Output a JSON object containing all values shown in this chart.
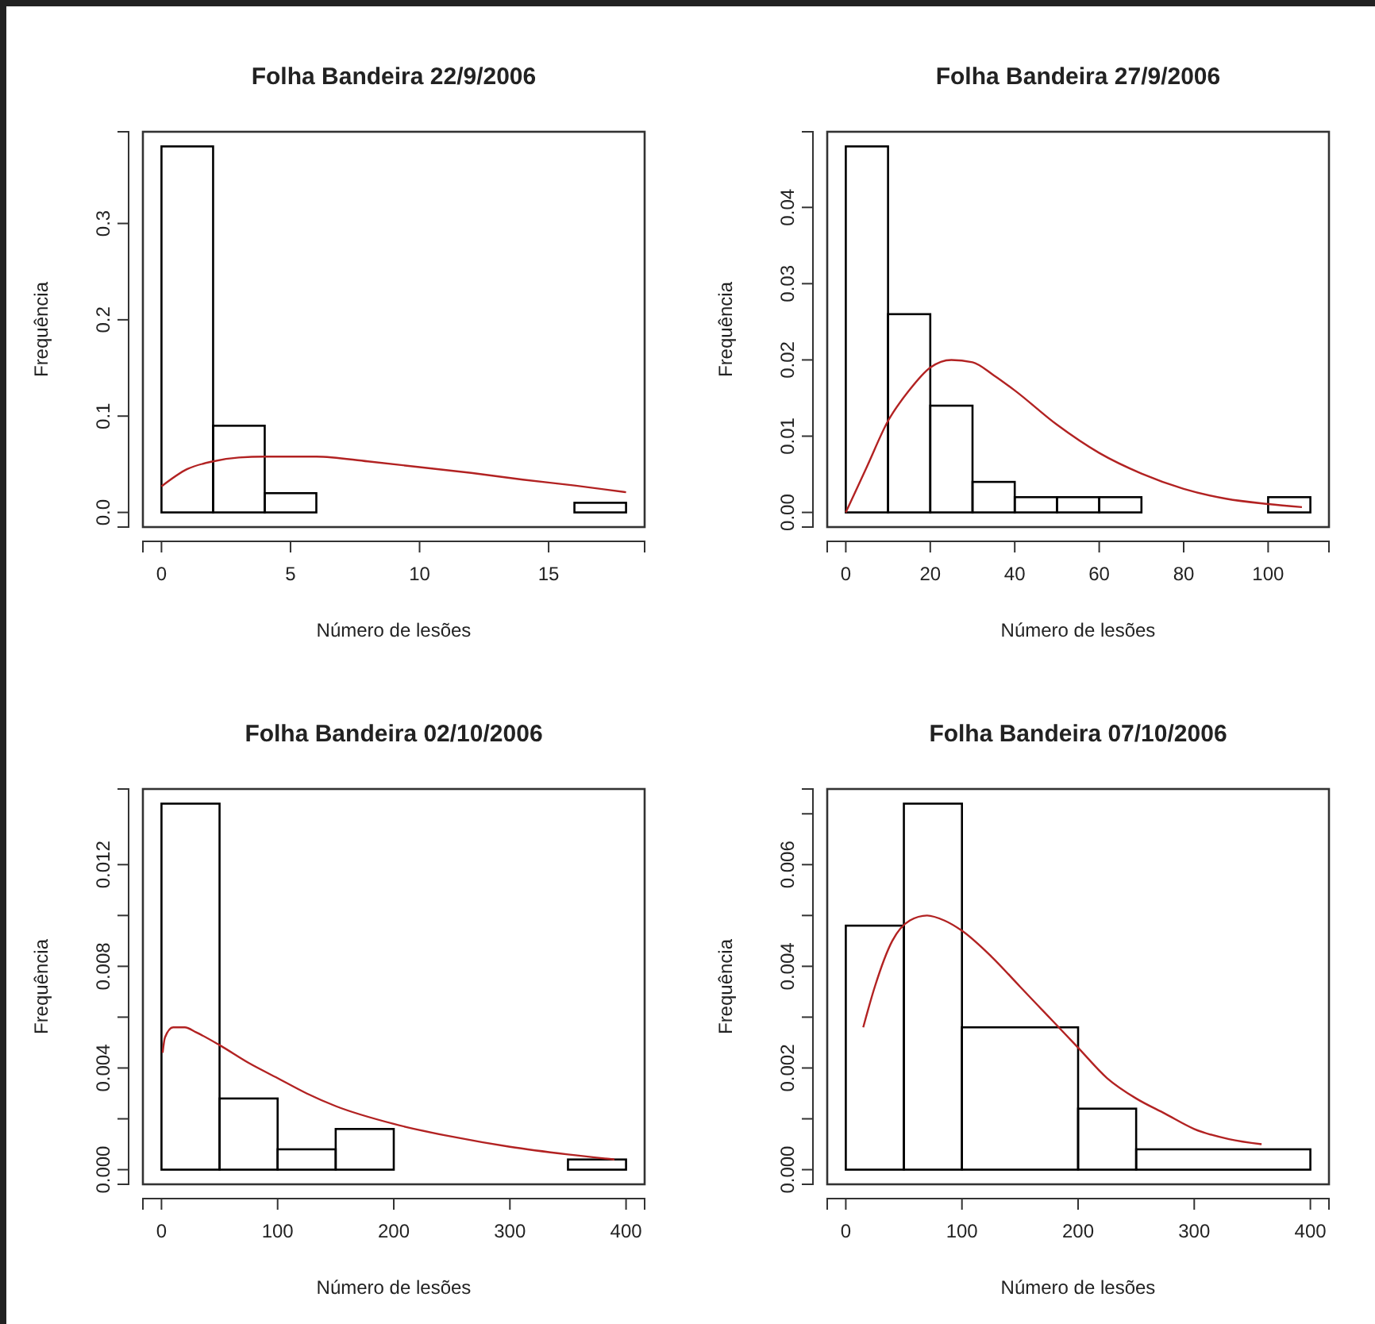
{
  "chart_data": [
    {
      "type": "histogram",
      "title": "Folha Bandeira 22/9/2006",
      "xlabel": "Número de lesões",
      "ylabel": "Frequência",
      "color": "#000000",
      "bins": [
        0,
        2,
        4,
        6,
        8,
        10,
        12,
        14,
        16,
        18
      ],
      "values": [
        0.38,
        0.09,
        0.02,
        0,
        0,
        0,
        0,
        0,
        0.01
      ],
      "xlim": [
        -0.72,
        18.72
      ],
      "ylim": [
        -0.0152,
        0.3952
      ],
      "xticks": [
        0,
        5,
        10,
        15
      ],
      "yticks": [
        {
          "value": 0,
          "label": "0.0"
        },
        0.1,
        0.2,
        0.3
      ],
      "series": [
        {
          "type": "line",
          "color": "#b22222",
          "x": [
            0,
            1,
            2,
            3,
            4,
            6,
            8,
            10,
            12,
            14,
            16,
            18
          ],
          "values": [
            0.027,
            0.045,
            0.053,
            0.057,
            0.058,
            0.058,
            0.053,
            0.047,
            0.041,
            0.034,
            0.028,
            0.021
          ]
        }
      ]
    },
    {
      "type": "histogram",
      "title": "Folha Bandeira 27/9/2006",
      "xlabel": "Número de lesões",
      "ylabel": "Frequência",
      "color": "#000000",
      "bins": [
        0,
        10,
        20,
        30,
        40,
        50,
        60,
        70,
        80,
        90,
        100,
        110
      ],
      "values": [
        0.048,
        0.026,
        0.014,
        0.004,
        0.002,
        0.002,
        0.002,
        0,
        0,
        0,
        0.002
      ],
      "xlim": [
        -4.4,
        114.4
      ],
      "ylim": [
        -0.00192,
        0.04992
      ],
      "xticks": [
        0,
        20,
        40,
        60,
        80,
        100
      ],
      "yticks": [
        {
          "value": 0,
          "label": "0.00"
        },
        0.01,
        0.02,
        0.03,
        0.04
      ],
      "series": [
        {
          "type": "line",
          "color": "#b22222",
          "x": [
            0,
            5,
            10,
            15,
            20,
            25,
            30,
            35,
            40,
            50,
            60,
            70,
            80,
            90,
            100,
            108
          ],
          "values": [
            0,
            0.006,
            0.012,
            0.016,
            0.019,
            0.02,
            0.0197,
            0.018,
            0.016,
            0.0115,
            0.0078,
            0.0051,
            0.0031,
            0.0018,
            0.0011,
            0.0007
          ]
        }
      ]
    },
    {
      "type": "histogram",
      "title": "Folha Bandeira 02/10/2006",
      "xlabel": "Número de lesões",
      "ylabel": "Frequência",
      "color": "#000000",
      "bins": [
        0,
        50,
        100,
        150,
        200,
        250,
        300,
        350,
        400
      ],
      "values": [
        0.0144,
        0.0028,
        0.0008,
        0.0016,
        0,
        0,
        0,
        0.0004
      ],
      "xlim": [
        -16,
        416
      ],
      "ylim": [
        -0.000576,
        0.014976
      ],
      "xticks": [
        0,
        100,
        200,
        300,
        400
      ],
      "yticks": [
        {
          "value": 0,
          "label": "0.000"
        },
        {
          "value": 0.002,
          "label": null
        },
        {
          "value": 0.004,
          "label": "0.004"
        },
        {
          "value": 0.006,
          "label": null
        },
        {
          "value": 0.008,
          "label": "0.008"
        },
        {
          "value": 0.01,
          "label": null
        },
        {
          "value": 0.012,
          "label": "0.012"
        }
      ],
      "series": [
        {
          "type": "line",
          "color": "#b22222",
          "x": [
            1,
            3,
            10,
            20,
            30,
            50,
            75,
            100,
            125,
            150,
            200,
            250,
            300,
            350,
            390
          ],
          "values": [
            0.0046,
            0.0052,
            0.0056,
            0.0056,
            0.0054,
            0.0049,
            0.0042,
            0.0036,
            0.003,
            0.0025,
            0.0018,
            0.0013,
            0.0009,
            0.0006,
            0.0004
          ]
        }
      ]
    },
    {
      "type": "histogram",
      "title": "Folha Bandeira 07/10/2006",
      "xlabel": "Número de lesões",
      "ylabel": "Frequência",
      "color": "#000000",
      "bins": [
        0,
        50,
        100,
        200,
        250,
        400
      ],
      "values": [
        0.0048,
        0.0072,
        0.0028,
        0.0012,
        0.0004
      ],
      "xlim": [
        -16,
        416
      ],
      "ylim": [
        -0.000288,
        0.007488
      ],
      "xticks": [
        0,
        100,
        200,
        300,
        400
      ],
      "yticks": [
        {
          "value": 0,
          "label": "0.000"
        },
        {
          "value": 0.001,
          "label": null
        },
        {
          "value": 0.002,
          "label": "0.002"
        },
        {
          "value": 0.003,
          "label": null
        },
        {
          "value": 0.004,
          "label": "0.004"
        },
        {
          "value": 0.005,
          "label": null
        },
        {
          "value": 0.006,
          "label": "0.006"
        },
        {
          "value": 0.007,
          "label": null
        }
      ],
      "series": [
        {
          "type": "line",
          "color": "#b22222",
          "x": [
            15,
            25,
            40,
            55,
            70,
            85,
            100,
            125,
            150,
            175,
            200,
            225,
            250,
            275,
            300,
            330,
            358
          ],
          "values": [
            0.0028,
            0.0036,
            0.0045,
            0.0049,
            0.005,
            0.0049,
            0.0047,
            0.0042,
            0.0036,
            0.003,
            0.0024,
            0.0018,
            0.0014,
            0.0011,
            0.0008,
            0.0006,
            0.0005
          ]
        }
      ]
    }
  ]
}
